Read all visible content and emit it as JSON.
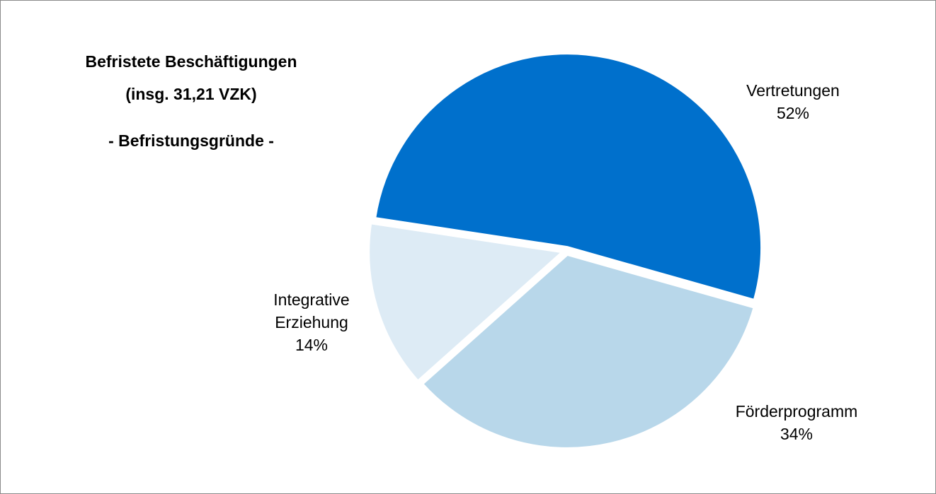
{
  "chart_data": {
    "type": "pie",
    "title": "Befristete Beschäftigungen",
    "subtitle": "(insg. 31,21 VZK)",
    "annotation": "- Befristungsgründe -",
    "categories": [
      "Vertretungen",
      "Förderprogramm",
      "Integrative Erziehung"
    ],
    "values": [
      52,
      34,
      14
    ],
    "value_labels": [
      "52%",
      "34%",
      "14%"
    ],
    "colors": [
      "#0070cc",
      "#b8d7ea",
      "#ddebf5"
    ]
  }
}
